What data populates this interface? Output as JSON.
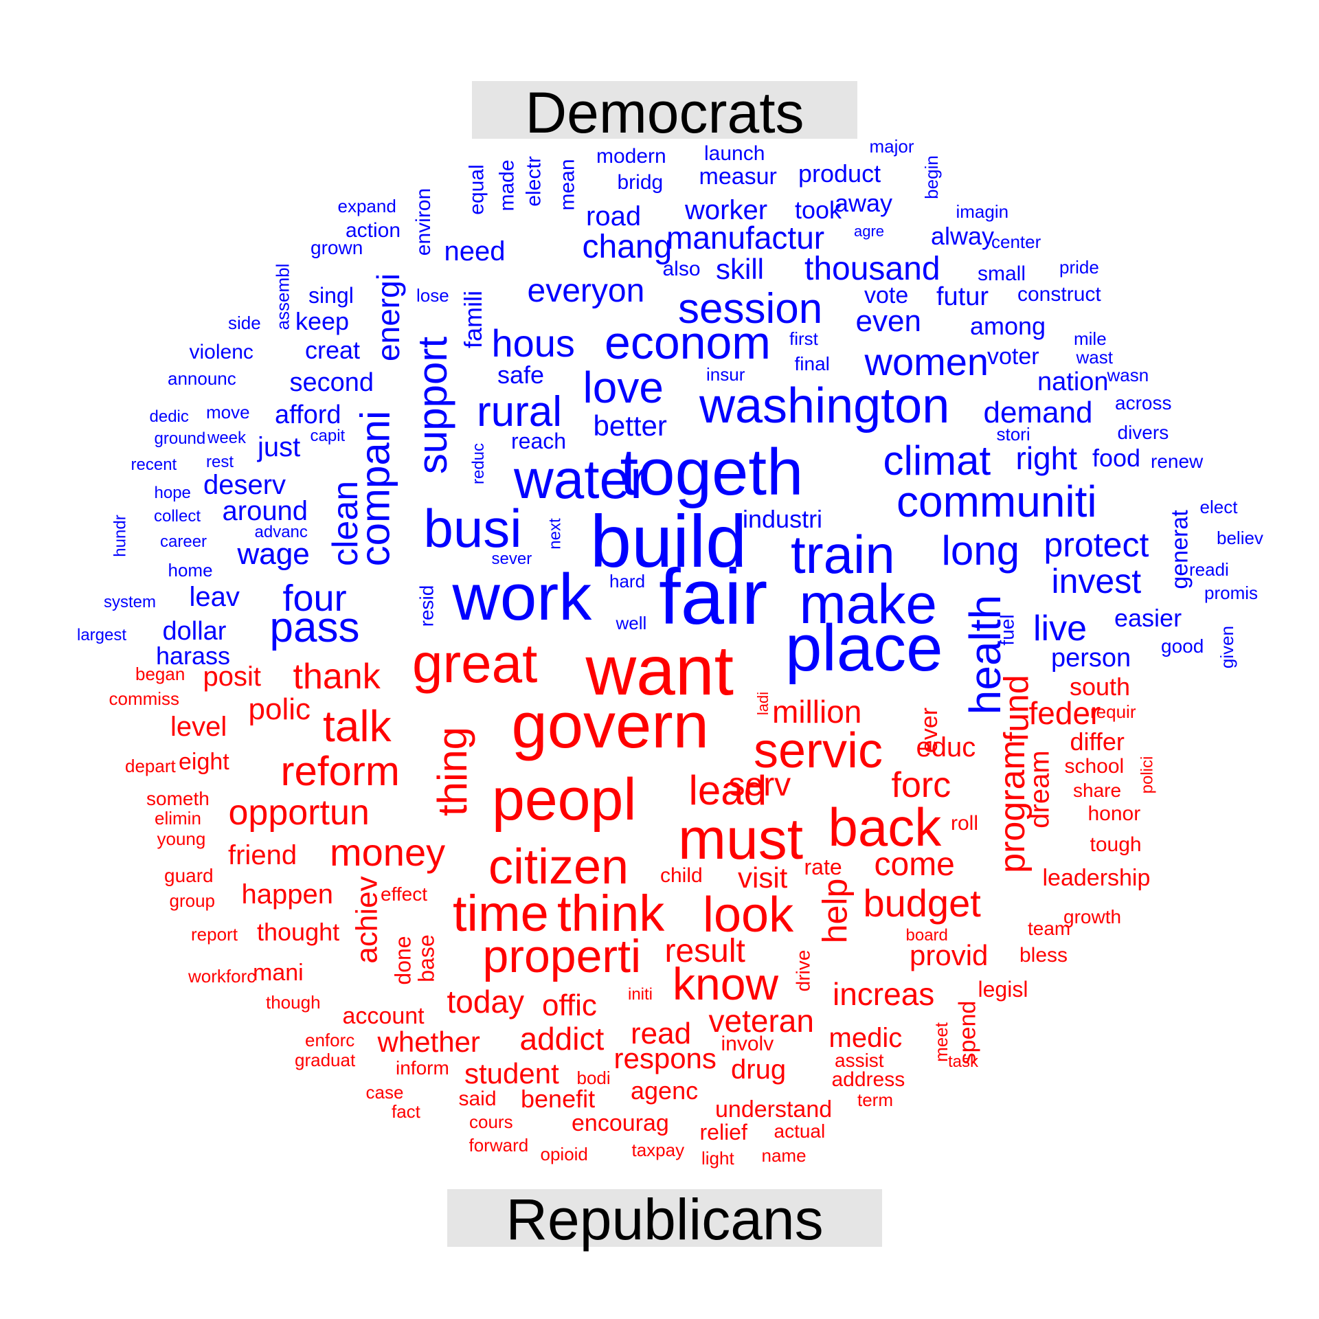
{
  "colors": {
    "democrats": "#0000ff",
    "republicans": "#ff0000",
    "label_background": "#e5e5e5"
  },
  "groups": {
    "democrats": "Democrats",
    "republicans": "Republicans"
  },
  "words": [
    [
      "fair",
      "d"
    ],
    [
      "build",
      "d"
    ],
    [
      "work",
      "d"
    ],
    [
      "togeth",
      "d"
    ],
    [
      "place",
      "d"
    ],
    [
      "make",
      "d"
    ],
    [
      "water",
      "d"
    ],
    [
      "washington",
      "d"
    ],
    [
      "busi",
      "d"
    ],
    [
      "econom",
      "d"
    ],
    [
      "train",
      "d"
    ],
    [
      "health",
      "d"
    ],
    [
      "session",
      "d"
    ],
    [
      "support",
      "d"
    ],
    [
      "communiti",
      "d"
    ],
    [
      "pass",
      "d"
    ],
    [
      "love",
      "d"
    ],
    [
      "rural",
      "d"
    ],
    [
      "compani",
      "d"
    ],
    [
      "climat",
      "d"
    ],
    [
      "clean",
      "d"
    ],
    [
      "hous",
      "d"
    ],
    [
      "women",
      "d"
    ],
    [
      "long",
      "d"
    ],
    [
      "protect",
      "d"
    ],
    [
      "four",
      "d"
    ],
    [
      "invest",
      "d"
    ],
    [
      "live",
      "d"
    ],
    [
      "manufactur",
      "d"
    ],
    [
      "thousand",
      "d"
    ],
    [
      "everyon",
      "d"
    ],
    [
      "chang",
      "d"
    ],
    [
      "right",
      "d"
    ],
    [
      "demand",
      "d"
    ],
    [
      "energi",
      "d"
    ],
    [
      "better",
      "d"
    ],
    [
      "road",
      "d"
    ],
    [
      "worker",
      "d"
    ],
    [
      "wage",
      "d"
    ],
    [
      "even",
      "d"
    ],
    [
      "person",
      "d"
    ],
    [
      "need",
      "d"
    ],
    [
      "skill",
      "d"
    ],
    [
      "nation",
      "d"
    ],
    [
      "second",
      "d"
    ],
    [
      "afford",
      "d"
    ],
    [
      "famili",
      "d"
    ],
    [
      "easier",
      "d"
    ],
    [
      "around",
      "d"
    ],
    [
      "deserv",
      "d"
    ],
    [
      "among",
      "d"
    ],
    [
      "futur",
      "d"
    ],
    [
      "dollar",
      "d"
    ],
    [
      "food",
      "d"
    ],
    [
      "safe",
      "d"
    ],
    [
      "creat",
      "d"
    ],
    [
      "leav",
      "d"
    ],
    [
      "away",
      "d"
    ],
    [
      "industri",
      "d"
    ],
    [
      "voter",
      "d"
    ],
    [
      "measur",
      "d"
    ],
    [
      "product",
      "d"
    ],
    [
      "took",
      "d"
    ],
    [
      "alway",
      "d"
    ],
    [
      "just",
      "d"
    ],
    [
      "reach",
      "d"
    ],
    [
      "keep",
      "d"
    ],
    [
      "harass",
      "d"
    ],
    [
      "generat",
      "d"
    ],
    [
      "modern",
      "d"
    ],
    [
      "launch",
      "d"
    ],
    [
      "bridg",
      "d"
    ],
    [
      "vote",
      "d"
    ],
    [
      "fuel",
      "d"
    ],
    [
      "construct",
      "d"
    ],
    [
      "equal",
      "d"
    ],
    [
      "made",
      "d"
    ],
    [
      "electr",
      "d"
    ],
    [
      "mean",
      "d"
    ],
    [
      "environ",
      "d"
    ],
    [
      "singl",
      "d"
    ],
    [
      "grown",
      "d"
    ],
    [
      "action",
      "d"
    ],
    [
      "expand",
      "d"
    ],
    [
      "divers",
      "d"
    ],
    [
      "small",
      "d"
    ],
    [
      "resid",
      "d"
    ],
    [
      "violenc",
      "d"
    ],
    [
      "move",
      "d"
    ],
    [
      "final",
      "d"
    ],
    [
      "good",
      "d"
    ],
    [
      "wage",
      "d"
    ],
    [
      "across",
      "d"
    ],
    [
      "stori",
      "d"
    ],
    [
      "renew",
      "d"
    ],
    [
      "elect",
      "d"
    ],
    [
      "believ",
      "d"
    ],
    [
      "readi",
      "d"
    ],
    [
      "promis",
      "d"
    ],
    [
      "given",
      "d"
    ],
    [
      "center",
      "d"
    ],
    [
      "imagin",
      "d"
    ],
    [
      "major",
      "d"
    ],
    [
      "begin",
      "d"
    ],
    [
      "pride",
      "d"
    ],
    [
      "mile",
      "d"
    ],
    [
      "wast",
      "d"
    ],
    [
      "wasn",
      "d"
    ],
    [
      "also",
      "d"
    ],
    [
      "lose",
      "d"
    ],
    [
      "side",
      "d"
    ],
    [
      "assembl",
      "d"
    ],
    [
      "announc",
      "d"
    ],
    [
      "insur",
      "d"
    ],
    [
      "first",
      "d"
    ],
    [
      "dedic",
      "d"
    ],
    [
      "ground",
      "d"
    ],
    [
      "week",
      "d"
    ],
    [
      "capit",
      "d"
    ],
    [
      "recent",
      "d"
    ],
    [
      "rest",
      "d"
    ],
    [
      "hope",
      "d"
    ],
    [
      "collect",
      "d"
    ],
    [
      "advanc",
      "d"
    ],
    [
      "career",
      "d"
    ],
    [
      "hundr",
      "d"
    ],
    [
      "home",
      "d"
    ],
    [
      "system",
      "d"
    ],
    [
      "largest",
      "d"
    ],
    [
      "hard",
      "d"
    ],
    [
      "well",
      "d"
    ],
    [
      "sever",
      "d"
    ],
    [
      "next",
      "d"
    ],
    [
      "reduc",
      "d"
    ],
    [
      "agre",
      "d"
    ],
    [
      "want",
      "r"
    ],
    [
      "govern",
      "r"
    ],
    [
      "peopl",
      "r"
    ],
    [
      "great",
      "r"
    ],
    [
      "must",
      "r"
    ],
    [
      "servic",
      "r"
    ],
    [
      "thing",
      "r"
    ],
    [
      "back",
      "r"
    ],
    [
      "citizen",
      "r"
    ],
    [
      "time",
      "r"
    ],
    [
      "think",
      "r"
    ],
    [
      "look",
      "r"
    ],
    [
      "properti",
      "r"
    ],
    [
      "talk",
      "r"
    ],
    [
      "reform",
      "r"
    ],
    [
      "know",
      "r"
    ],
    [
      "lead",
      "r"
    ],
    [
      "budget",
      "r"
    ],
    [
      "money",
      "r"
    ],
    [
      "thank",
      "r"
    ],
    [
      "program",
      "r"
    ],
    [
      "fund",
      "r"
    ],
    [
      "help",
      "r"
    ],
    [
      "opportun",
      "r"
    ],
    [
      "forc",
      "r"
    ],
    [
      "million",
      "r"
    ],
    [
      "come",
      "r"
    ],
    [
      "serv",
      "r"
    ],
    [
      "feder",
      "r"
    ],
    [
      "result",
      "r"
    ],
    [
      "polic",
      "r"
    ],
    [
      "today",
      "r"
    ],
    [
      "increas",
      "r"
    ],
    [
      "addict",
      "r"
    ],
    [
      "veteran",
      "r"
    ],
    [
      "achiev",
      "r"
    ],
    [
      "read",
      "r"
    ],
    [
      "offic",
      "r"
    ],
    [
      "visit",
      "r"
    ],
    [
      "dream",
      "r"
    ],
    [
      "educ",
      "r"
    ],
    [
      "provid",
      "r"
    ],
    [
      "medic",
      "r"
    ],
    [
      "happen",
      "r"
    ],
    [
      "student",
      "r"
    ],
    [
      "whether",
      "r"
    ],
    [
      "respons",
      "r"
    ],
    [
      "posit",
      "r"
    ],
    [
      "drug",
      "r"
    ],
    [
      "level",
      "r"
    ],
    [
      "friend",
      "r"
    ],
    [
      "differ",
      "r"
    ],
    [
      "south",
      "r"
    ],
    [
      "ever",
      "r"
    ],
    [
      "done",
      "r"
    ],
    [
      "thought",
      "r"
    ],
    [
      "mani",
      "r"
    ],
    [
      "account",
      "r"
    ],
    [
      "benefit",
      "r"
    ],
    [
      "agenc",
      "r"
    ],
    [
      "base",
      "r"
    ],
    [
      "understand",
      "r"
    ],
    [
      "encourag",
      "r"
    ],
    [
      "eight",
      "r"
    ],
    [
      "rate",
      "r"
    ],
    [
      "leadership",
      "r"
    ],
    [
      "spend",
      "r"
    ],
    [
      "address",
      "r"
    ],
    [
      "relief",
      "r"
    ],
    [
      "honor",
      "r"
    ],
    [
      "tough",
      "r"
    ],
    [
      "legisl",
      "r"
    ],
    [
      "involv",
      "r"
    ],
    [
      "child",
      "r"
    ],
    [
      "bless",
      "r"
    ],
    [
      "roll",
      "r"
    ],
    [
      "ladi",
      "r"
    ],
    [
      "drive",
      "r"
    ],
    [
      "school",
      "r"
    ],
    [
      "team",
      "r"
    ],
    [
      "share",
      "r"
    ],
    [
      "meet",
      "r"
    ],
    [
      "growth",
      "r"
    ],
    [
      "actual",
      "r"
    ],
    [
      "inform",
      "r"
    ],
    [
      "effect",
      "r"
    ],
    [
      "someth",
      "r"
    ],
    [
      "guard",
      "r"
    ],
    [
      "elimin",
      "r"
    ],
    [
      "young",
      "r"
    ],
    [
      "said",
      "r"
    ],
    [
      "polici",
      "r"
    ],
    [
      "group",
      "r"
    ],
    [
      "board",
      "r"
    ],
    [
      "began",
      "r"
    ],
    [
      "requir",
      "r"
    ],
    [
      "commiss",
      "r"
    ],
    [
      "depart",
      "r"
    ],
    [
      "assist",
      "r"
    ],
    [
      "bodi",
      "r"
    ],
    [
      "cours",
      "r"
    ],
    [
      "forward",
      "r"
    ],
    [
      "opioid",
      "r"
    ],
    [
      "taxpay",
      "r"
    ],
    [
      "light",
      "r"
    ],
    [
      "name",
      "r"
    ],
    [
      "term",
      "r"
    ],
    [
      "case",
      "r"
    ],
    [
      "fact",
      "r"
    ],
    [
      "graduat",
      "r"
    ],
    [
      "enforc",
      "r"
    ],
    [
      "initi",
      "r"
    ],
    [
      "task",
      "r"
    ],
    [
      "workforc",
      "r"
    ],
    [
      "report",
      "r"
    ],
    [
      "though",
      "r"
    ]
  ]
}
